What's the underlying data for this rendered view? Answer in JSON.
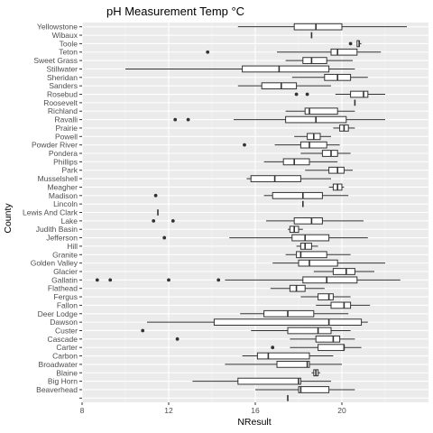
{
  "chart_data": {
    "type": "boxplot",
    "orientation": "horizontal",
    "title": "pH Measurement Temp °C",
    "xlabel": "NResult",
    "ylabel": "County",
    "xlim": [
      8,
      24
    ],
    "x_ticks": [
      8,
      12,
      16,
      20
    ],
    "grid": true,
    "categories": [
      "Yellowstone",
      "Wibaux",
      "Toole",
      "Teton",
      "Sweet Grass",
      "Stillwater",
      "Sheridan",
      "Sanders",
      "Rosebud",
      "Roosevelt",
      "Richland",
      "Ravalli",
      "Prairie",
      "Powell",
      "Powder River",
      "Pondera",
      "Phillips",
      "Park",
      "Musselshell",
      "Meagher",
      "Madison",
      "Lincoln",
      "Lewis And Clark",
      "Lake",
      "Judith Basin",
      "Jefferson",
      "Hill",
      "Granite",
      "Golden Valley",
      "Glacier",
      "Gallatin",
      "Flathead",
      "Fergus",
      "Fallon",
      "Deer Lodge",
      "Dawson",
      "Custer",
      "Cascade",
      "Carter",
      "Carbon",
      "Broadwater",
      "Blaine",
      "Big Horn",
      "Beaverhead",
      ""
    ],
    "boxes": [
      {
        "category": "Yellowstone",
        "min": 15.2,
        "q1": 17.8,
        "median": 18.8,
        "q3": 20.0,
        "max": 23.0,
        "outliers": []
      },
      {
        "category": "Wibaux",
        "min": 18.6,
        "q1": 18.6,
        "median": 18.6,
        "q3": 18.6,
        "max": 18.6,
        "outliers": []
      },
      {
        "category": "Toole",
        "min": 20.7,
        "q1": 20.7,
        "median": 20.8,
        "q3": 20.8,
        "max": 20.9,
        "outliers": [
          20.4
        ]
      },
      {
        "category": "Teton",
        "min": 17.0,
        "q1": 19.5,
        "median": 19.8,
        "q3": 20.7,
        "max": 21.8,
        "outliers": [
          13.8
        ]
      },
      {
        "category": "Sweet Grass",
        "min": 17.4,
        "q1": 18.2,
        "median": 18.6,
        "q3": 19.3,
        "max": 20.5,
        "outliers": []
      },
      {
        "category": "Stillwater",
        "min": 10.0,
        "q1": 15.4,
        "median": 17.1,
        "q3": 19.4,
        "max": 20.6,
        "outliers": []
      },
      {
        "category": "Sheridan",
        "min": 17.7,
        "q1": 19.2,
        "median": 19.8,
        "q3": 20.4,
        "max": 21.2,
        "outliers": []
      },
      {
        "category": "Sanders",
        "min": 15.2,
        "q1": 16.3,
        "median": 17.2,
        "q3": 17.9,
        "max": 19.5,
        "outliers": []
      },
      {
        "category": "Rosebud",
        "min": 19.7,
        "q1": 20.4,
        "median": 21.0,
        "q3": 21.2,
        "max": 22.0,
        "outliers": [
          17.9,
          18.4
        ]
      },
      {
        "category": "Roosevelt",
        "min": 20.6,
        "q1": 20.6,
        "median": 20.6,
        "q3": 20.6,
        "max": 20.6,
        "outliers": []
      },
      {
        "category": "Richland",
        "min": 17.4,
        "q1": 18.3,
        "median": 18.5,
        "q3": 19.8,
        "max": 20.6,
        "outliers": []
      },
      {
        "category": "Ravalli",
        "min": 15.0,
        "q1": 17.4,
        "median": 18.8,
        "q3": 20.2,
        "max": 22.0,
        "outliers": [
          12.3,
          12.9
        ]
      },
      {
        "category": "Prairie",
        "min": 19.6,
        "q1": 19.9,
        "median": 20.1,
        "q3": 20.3,
        "max": 20.6,
        "outliers": []
      },
      {
        "category": "Powell",
        "min": 17.8,
        "q1": 18.4,
        "median": 18.7,
        "q3": 19.0,
        "max": 19.5,
        "outliers": []
      },
      {
        "category": "Powder River",
        "min": 16.9,
        "q1": 18.1,
        "median": 18.5,
        "q3": 19.3,
        "max": 19.9,
        "outliers": [
          15.5
        ]
      },
      {
        "category": "Pondera",
        "min": 18.1,
        "q1": 19.1,
        "median": 19.5,
        "q3": 19.8,
        "max": 20.4,
        "outliers": []
      },
      {
        "category": "Phillips",
        "min": 16.4,
        "q1": 17.3,
        "median": 17.8,
        "q3": 18.5,
        "max": 19.8,
        "outliers": []
      },
      {
        "category": "Park",
        "min": 18.3,
        "q1": 19.4,
        "median": 19.8,
        "q3": 20.1,
        "max": 20.5,
        "outliers": []
      },
      {
        "category": "Musselshell",
        "min": 15.6,
        "q1": 15.8,
        "median": 16.9,
        "q3": 18.1,
        "max": 19.5,
        "outliers": []
      },
      {
        "category": "Meagher",
        "min": 19.4,
        "q1": 19.6,
        "median": 19.8,
        "q3": 20.0,
        "max": 20.1,
        "outliers": []
      },
      {
        "category": "Madison",
        "min": 16.4,
        "q1": 16.8,
        "median": 18.2,
        "q3": 19.1,
        "max": 20.3,
        "outliers": [
          11.4
        ]
      },
      {
        "category": "Lincoln",
        "min": 18.2,
        "q1": 18.2,
        "median": 18.2,
        "q3": 18.2,
        "max": 18.2,
        "outliers": []
      },
      {
        "category": "Lewis And Clark",
        "min": 11.5,
        "q1": 11.5,
        "median": 11.5,
        "q3": 11.5,
        "max": 11.5,
        "outliers": []
      },
      {
        "category": "Lake",
        "min": 16.5,
        "q1": 17.8,
        "median": 18.6,
        "q3": 19.1,
        "max": 21.0,
        "outliers": [
          11.3,
          12.2
        ]
      },
      {
        "category": "Judith Basin",
        "min": 17.5,
        "q1": 17.6,
        "median": 17.8,
        "q3": 18.0,
        "max": 18.2,
        "outliers": []
      },
      {
        "category": "Jefferson",
        "min": 14.8,
        "q1": 17.7,
        "median": 18.3,
        "q3": 19.4,
        "max": 21.2,
        "outliers": [
          11.8
        ]
      },
      {
        "category": "Hill",
        "min": 17.9,
        "q1": 18.1,
        "median": 18.3,
        "q3": 18.6,
        "max": 18.9,
        "outliers": []
      },
      {
        "category": "Granite",
        "min": 17.4,
        "q1": 17.9,
        "median": 18.1,
        "q3": 19.3,
        "max": 20.4,
        "outliers": []
      },
      {
        "category": "Golden Valley",
        "min": 16.8,
        "q1": 18.0,
        "median": 18.5,
        "q3": 19.8,
        "max": 22.0,
        "outliers": []
      },
      {
        "category": "Glacier",
        "min": 18.7,
        "q1": 19.6,
        "median": 20.2,
        "q3": 20.6,
        "max": 21.5,
        "outliers": []
      },
      {
        "category": "Gallatin",
        "min": 14.6,
        "q1": 18.2,
        "median": 19.3,
        "q3": 20.7,
        "max": 22.7,
        "outliers": [
          8.7,
          9.3,
          12.0,
          14.3
        ]
      },
      {
        "category": "Flathead",
        "min": 16.7,
        "q1": 17.6,
        "median": 17.9,
        "q3": 18.3,
        "max": 19.2,
        "outliers": []
      },
      {
        "category": "Fergus",
        "min": 18.1,
        "q1": 18.9,
        "median": 19.4,
        "q3": 19.6,
        "max": 20.4,
        "outliers": []
      },
      {
        "category": "Fallon",
        "min": 18.8,
        "q1": 19.5,
        "median": 20.1,
        "q3": 20.4,
        "max": 21.3,
        "outliers": []
      },
      {
        "category": "Deer Lodge",
        "min": 15.3,
        "q1": 16.4,
        "median": 17.5,
        "q3": 18.7,
        "max": 20.3,
        "outliers": []
      },
      {
        "category": "Dawson",
        "min": 11.0,
        "q1": 14.1,
        "median": 19.4,
        "q3": 20.9,
        "max": 21.2,
        "outliers": []
      },
      {
        "category": "Custer",
        "min": 15.8,
        "q1": 17.5,
        "median": 18.9,
        "q3": 19.5,
        "max": 20.4,
        "outliers": [
          10.8
        ]
      },
      {
        "category": "Cascade",
        "min": 17.6,
        "q1": 18.8,
        "median": 19.6,
        "q3": 19.9,
        "max": 20.6,
        "outliers": [
          12.4
        ]
      },
      {
        "category": "Carter",
        "min": 17.6,
        "q1": 18.9,
        "median": 20.1,
        "q3": 20.1,
        "max": 20.9,
        "outliers": [
          16.8
        ]
      },
      {
        "category": "Carbon",
        "min": 15.4,
        "q1": 16.1,
        "median": 16.6,
        "q3": 18.5,
        "max": 19.6,
        "outliers": []
      },
      {
        "category": "Broadwater",
        "min": 14.6,
        "q1": 17.0,
        "median": 18.4,
        "q3": 18.5,
        "max": 20.0,
        "outliers": []
      },
      {
        "category": "Blaine",
        "min": 18.6,
        "q1": 18.7,
        "median": 18.8,
        "q3": 18.9,
        "max": 19.0,
        "outliers": []
      },
      {
        "category": "Big Horn",
        "min": 13.1,
        "q1": 15.2,
        "median": 18.0,
        "q3": 18.1,
        "max": 19.5,
        "outliers": []
      },
      {
        "category": "Beaverhead",
        "min": 16.0,
        "q1": 18.0,
        "median": 18.1,
        "q3": 19.4,
        "max": 20.6,
        "outliers": []
      },
      {
        "category": "",
        "min": 17.5,
        "q1": 17.5,
        "median": 17.5,
        "q3": 17.5,
        "max": 17.5,
        "outliers": []
      }
    ]
  },
  "colors": {
    "panel_bg": "#ebebeb",
    "grid_major": "#ffffff",
    "grid_minor": "#f5f5f5",
    "box_fill": "#ffffff",
    "line": "#333333",
    "outlier": "#333333"
  }
}
